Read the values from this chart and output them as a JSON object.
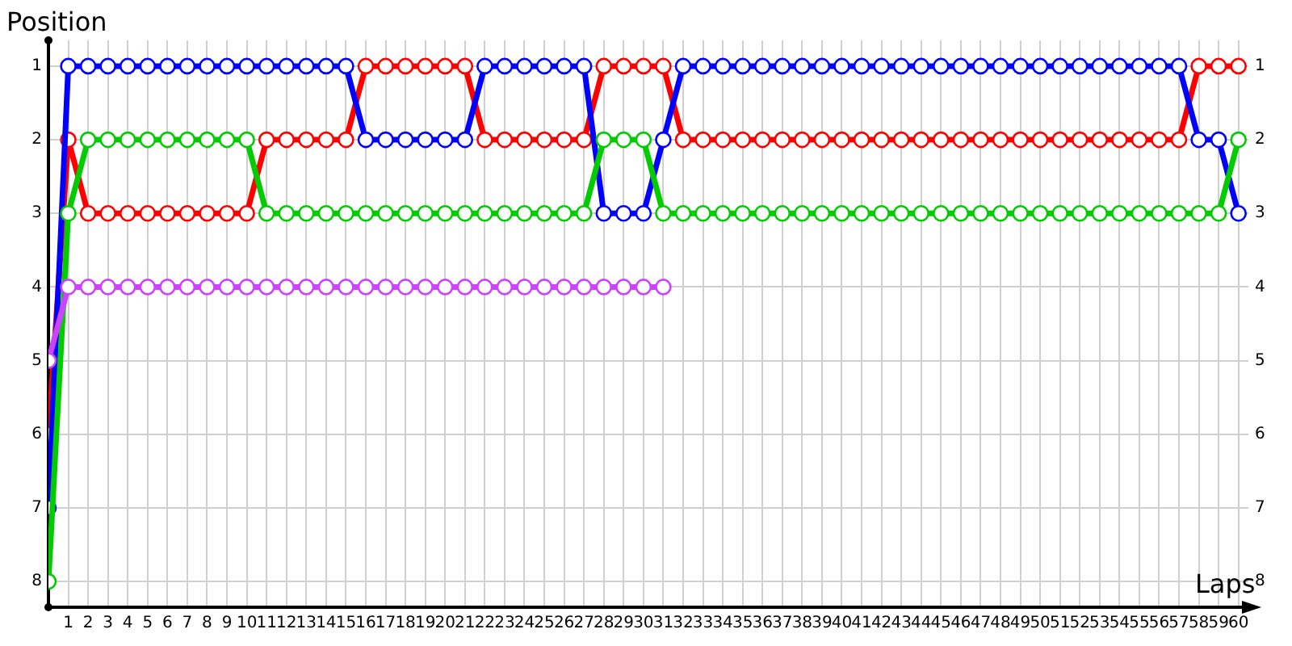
{
  "chart_data": {
    "type": "line",
    "xlabel": "Laps",
    "ylabel": "Position",
    "x": [
      0,
      1,
      2,
      3,
      4,
      5,
      6,
      7,
      8,
      9,
      10,
      11,
      12,
      13,
      14,
      15,
      16,
      17,
      18,
      19,
      20,
      21,
      22,
      23,
      24,
      25,
      26,
      27,
      28,
      29,
      30,
      31,
      32,
      33,
      34,
      35,
      36,
      37,
      38,
      39,
      40,
      41,
      42,
      43,
      44,
      45,
      46,
      47,
      48,
      49,
      50,
      51,
      52,
      53,
      54,
      55,
      56,
      57,
      58,
      59,
      60
    ],
    "series": [
      {
        "color": "#ff0000",
        "values": [
          6,
          2,
          3,
          3,
          3,
          3,
          3,
          3,
          3,
          3,
          3,
          2,
          2,
          2,
          2,
          2,
          1,
          1,
          1,
          1,
          1,
          1,
          2,
          2,
          2,
          2,
          2,
          2,
          1,
          1,
          1,
          1,
          2,
          2,
          2,
          2,
          2,
          2,
          2,
          2,
          2,
          2,
          2,
          2,
          2,
          2,
          2,
          2,
          2,
          2,
          2,
          2,
          2,
          2,
          2,
          2,
          2,
          2,
          1,
          1,
          1
        ]
      },
      {
        "color": "#0000ff",
        "values": [
          7,
          1,
          1,
          1,
          1,
          1,
          1,
          1,
          1,
          1,
          1,
          1,
          1,
          1,
          1,
          1,
          2,
          2,
          2,
          2,
          2,
          2,
          1,
          1,
          1,
          1,
          1,
          1,
          3,
          3,
          3,
          2,
          1,
          1,
          1,
          1,
          1,
          1,
          1,
          1,
          1,
          1,
          1,
          1,
          1,
          1,
          1,
          1,
          1,
          1,
          1,
          1,
          1,
          1,
          1,
          1,
          1,
          1,
          2,
          2,
          3
        ]
      },
      {
        "color": "#00cc00",
        "values": [
          8,
          3,
          2,
          2,
          2,
          2,
          2,
          2,
          2,
          2,
          2,
          3,
          3,
          3,
          3,
          3,
          3,
          3,
          3,
          3,
          3,
          3,
          3,
          3,
          3,
          3,
          3,
          3,
          2,
          2,
          2,
          3,
          3,
          3,
          3,
          3,
          3,
          3,
          3,
          3,
          3,
          3,
          3,
          3,
          3,
          3,
          3,
          3,
          3,
          3,
          3,
          3,
          3,
          3,
          3,
          3,
          3,
          3,
          3,
          3,
          2
        ]
      },
      {
        "color": "#cc44ff",
        "values": [
          5,
          4,
          4,
          4,
          4,
          4,
          4,
          4,
          4,
          4,
          4,
          4,
          4,
          4,
          4,
          4,
          4,
          4,
          4,
          4,
          4,
          4,
          4,
          4,
          4,
          4,
          4,
          4,
          4,
          4,
          4,
          4,
          null,
          null,
          null,
          null,
          null,
          null,
          null,
          null,
          null,
          null,
          null,
          null,
          null,
          null,
          null,
          null,
          null,
          null,
          null,
          null,
          null,
          null,
          null,
          null,
          null,
          null,
          null,
          null,
          null
        ]
      }
    ],
    "xlim": [
      0,
      60.5
    ],
    "xticks": [
      1,
      2,
      3,
      4,
      5,
      6,
      7,
      8,
      9,
      10,
      11,
      12,
      13,
      14,
      15,
      16,
      17,
      18,
      19,
      20,
      21,
      22,
      23,
      24,
      25,
      26,
      27,
      28,
      29,
      30,
      31,
      32,
      33,
      34,
      35,
      36,
      37,
      38,
      39,
      40,
      41,
      42,
      43,
      44,
      45,
      46,
      47,
      48,
      49,
      50,
      51,
      52,
      53,
      54,
      55,
      56,
      57,
      58,
      59,
      60
    ],
    "ylim": [
      8.35,
      0.65
    ],
    "yticks": [
      1,
      2,
      3,
      4,
      5,
      6,
      7,
      8
    ],
    "y2lim": [
      8.35,
      0.65
    ],
    "y2ticks": [
      1,
      2,
      3,
      4,
      5,
      6,
      7,
      8
    ],
    "grid": true,
    "legend": false,
    "marker": "circle",
    "line_style": "solid"
  }
}
